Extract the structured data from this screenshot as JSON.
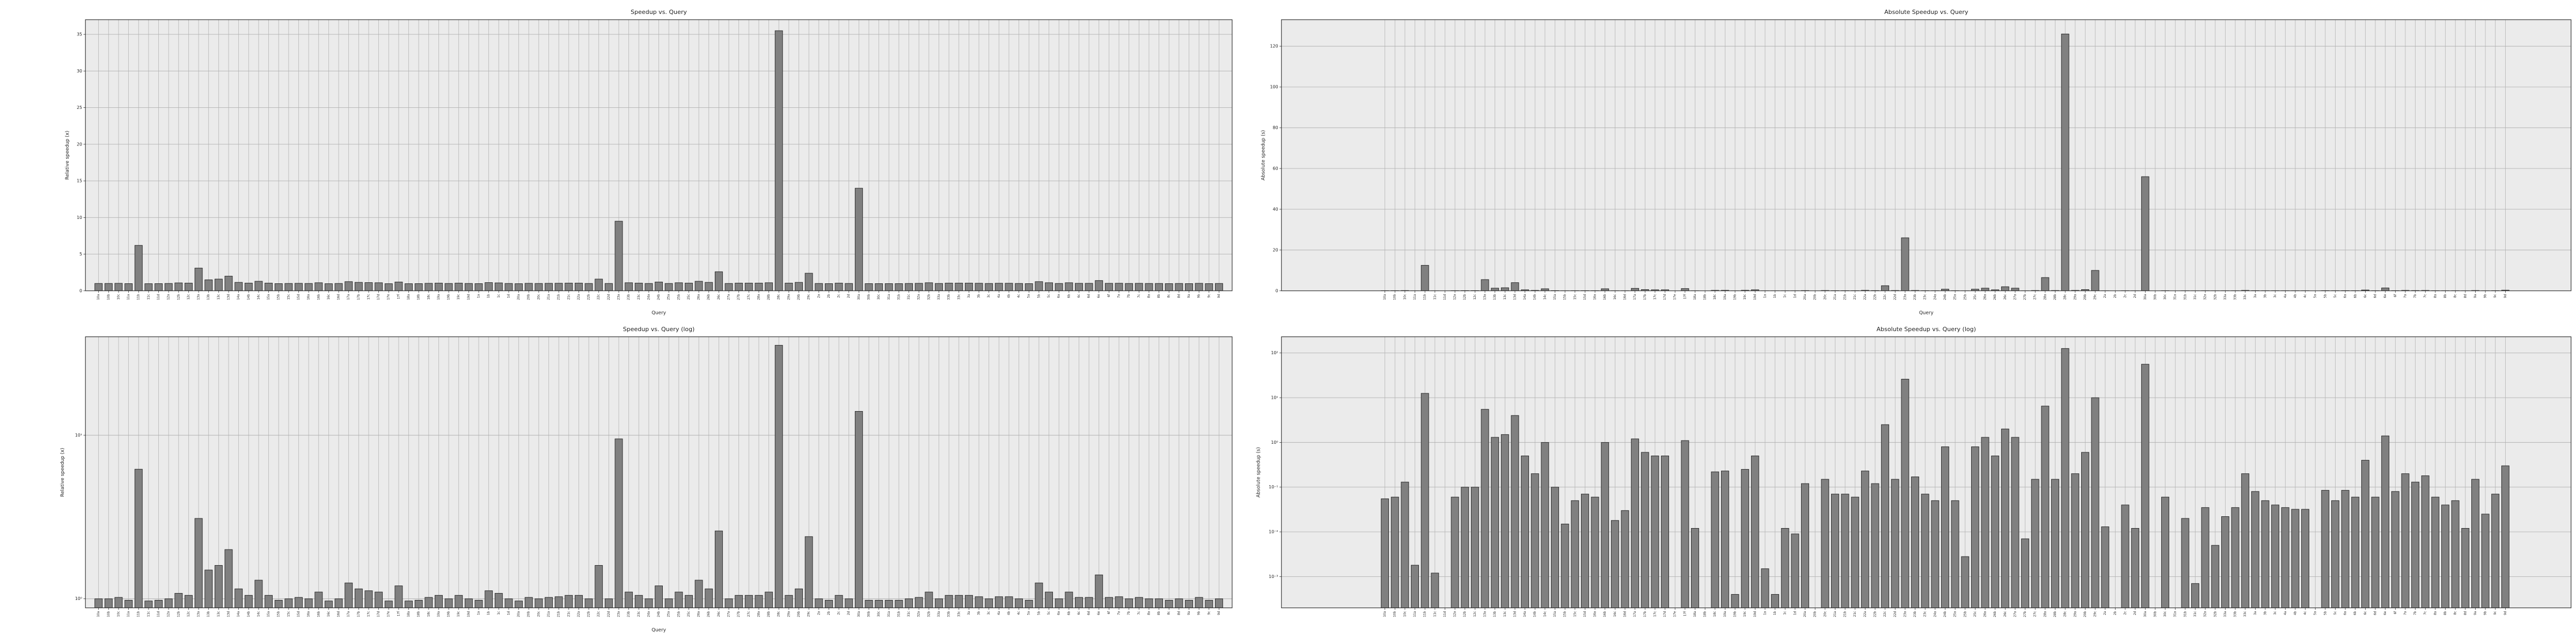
{
  "chart_data": [
    {
      "type": "bar",
      "title": "Speedup vs. Query",
      "xlabel": "Query",
      "ylabel": "Relative speedup (x)",
      "color": "#808080",
      "log": false,
      "grid": true,
      "categories": [
        "10a",
        "10b",
        "10c",
        "11a",
        "11b",
        "11c",
        "11d",
        "12a",
        "12b",
        "12c",
        "13a",
        "13b",
        "13c",
        "13d",
        "14a",
        "14b",
        "14c",
        "15a",
        "15b",
        "15c",
        "15d",
        "16a",
        "16b",
        "16c",
        "16d",
        "17a",
        "17b",
        "17c",
        "17d",
        "17e",
        "17f",
        "18a",
        "18b",
        "18c",
        "19a",
        "19b",
        "19c",
        "19d",
        "1a",
        "1b",
        "1c",
        "1d",
        "20a",
        "20b",
        "20c",
        "21a",
        "21b",
        "21c",
        "22a",
        "22b",
        "22c",
        "22d",
        "23a",
        "23b",
        "23c",
        "24a",
        "24b",
        "25a",
        "25b",
        "25c",
        "26a",
        "26b",
        "26c",
        "27a",
        "27b",
        "27c",
        "28a",
        "28b",
        "28c",
        "29a",
        "29b",
        "29c",
        "2a",
        "2b",
        "2c",
        "2d",
        "30a",
        "30b",
        "30c",
        "31a",
        "31b",
        "31c",
        "32a",
        "32b",
        "33a",
        "33b",
        "33c",
        "3a",
        "3b",
        "3c",
        "4a",
        "4b",
        "4c",
        "5a",
        "5b",
        "5c",
        "6a",
        "6b",
        "6c",
        "6d",
        "6e",
        "6f",
        "7a",
        "7b",
        "7c",
        "8a",
        "8b",
        "8c",
        "8d",
        "9a",
        "9b",
        "9c",
        "9d"
      ],
      "values": [
        1.0,
        1.0,
        1.02,
        0.98,
        6.2,
        0.97,
        0.98,
        1.0,
        1.08,
        1.05,
        3.1,
        1.5,
        1.6,
        2.0,
        1.15,
        1.05,
        1.3,
        1.05,
        0.98,
        1.0,
        1.02,
        1.0,
        1.1,
        0.97,
        1.0,
        1.25,
        1.15,
        1.12,
        1.1,
        0.97,
        1.2,
        0.97,
        0.98,
        1.02,
        1.05,
        1.0,
        1.05,
        1.0,
        0.98,
        1.12,
        1.08,
        1.0,
        0.97,
        1.02,
        1.0,
        1.02,
        1.03,
        1.05,
        1.05,
        1.0,
        1.6,
        1.0,
        9.5,
        1.1,
        1.05,
        1.0,
        1.2,
        1.0,
        1.1,
        1.05,
        1.3,
        1.15,
        2.6,
        1.0,
        1.05,
        1.05,
        1.05,
        1.1,
        35.5,
        1.05,
        1.15,
        2.4,
        1.0,
        0.98,
        1.05,
        1.0,
        14.0,
        0.98,
        0.98,
        0.98,
        0.98,
        1.0,
        1.02,
        1.1,
        1.0,
        1.05,
        1.05,
        1.05,
        1.03,
        1.0,
        1.03,
        1.03,
        1.0,
        0.98,
        1.25,
        1.1,
        1.0,
        1.1,
        1.02,
        1.02,
        1.4,
        1.02,
        1.03,
        1.0,
        1.02,
        1.0,
        1.0,
        0.98,
        1.0,
        0.98,
        1.02,
        0.98,
        1.0
      ],
      "ylim": [
        0,
        37
      ],
      "yticks": [
        0,
        5,
        10,
        15,
        20,
        25,
        30,
        35
      ]
    },
    {
      "type": "bar",
      "title": "Absolute Speedup vs. Query",
      "xlabel": "Query",
      "ylabel": "Absolute speedup (s)",
      "color": "#808080",
      "log": false,
      "grid": true,
      "categories": [
        "10a",
        "10b",
        "10c",
        "11a",
        "11b",
        "11c",
        "11d",
        "12a",
        "12b",
        "12c",
        "13a",
        "13b",
        "13c",
        "13d",
        "14a",
        "14b",
        "14c",
        "15a",
        "15b",
        "15c",
        "15d",
        "16a",
        "16b",
        "16c",
        "16d",
        "17a",
        "17b",
        "17c",
        "17d",
        "17e",
        "17f",
        "18a",
        "18b",
        "18c",
        "19a",
        "19b",
        "19c",
        "19d",
        "1a",
        "1b",
        "1c",
        "1d",
        "20a",
        "20b",
        "20c",
        "21a",
        "21b",
        "21c",
        "22a",
        "22b",
        "22c",
        "22d",
        "23a",
        "23b",
        "23c",
        "24a",
        "24b",
        "25a",
        "25b",
        "25c",
        "26a",
        "26b",
        "26c",
        "27a",
        "27b",
        "27c",
        "28a",
        "28b",
        "28c",
        "29a",
        "29b",
        "29c",
        "2a",
        "2b",
        "2c",
        "2d",
        "30a",
        "30b",
        "30c",
        "31a",
        "31b",
        "31c",
        "32a",
        "32b",
        "33a",
        "33b",
        "33c",
        "3a",
        "3b",
        "3c",
        "4a",
        "4b",
        "4c",
        "5a",
        "5b",
        "5c",
        "6a",
        "6b",
        "6c",
        "6d",
        "6e",
        "6f",
        "7a",
        "7b",
        "7c",
        "8a",
        "8b",
        "8c",
        "8d",
        "9a",
        "9b",
        "9c",
        "9d"
      ],
      "values": [
        0.055,
        0.06,
        0.13,
        0.0018,
        12.5,
        0.0012,
        null,
        0.06,
        0.1,
        0.1,
        5.5,
        1.3,
        1.5,
        4,
        0.5,
        0.2,
        1.0,
        0.1,
        0.015,
        0.05,
        0.07,
        0.06,
        1.0,
        0.018,
        0.03,
        1.2,
        0.6,
        0.5,
        0.5,
        null,
        1.1,
        0.012,
        null,
        0.22,
        0.23,
        0.0004,
        0.25,
        0.5,
        0.0015,
        0.0004,
        0.012,
        0.009,
        0.12,
        null,
        0.15,
        0.07,
        0.07,
        0.06,
        0.23,
        0.12,
        2.5,
        0.15,
        26,
        0.17,
        0.07,
        0.05,
        0.8,
        0.05,
        0.0028,
        0.8,
        1.3,
        0.5,
        2.0,
        1.3,
        0.007,
        0.15,
        6.5,
        0.15,
        126,
        0.2,
        0.6,
        10,
        0.013,
        null,
        0.04,
        0.012,
        56,
        null,
        0.06,
        null,
        0.02,
        0.0007,
        0.035,
        0.005,
        0.022,
        0.035,
        0.2,
        0.08,
        0.05,
        0.04,
        0.035,
        0.032,
        0.032,
        null,
        0.085,
        0.05,
        0.085,
        0.06,
        0.4,
        0.06,
        1.4,
        0.08,
        0.2,
        0.13,
        0.18,
        0.06,
        0.04,
        0.05,
        0.012,
        0.15,
        0.025,
        0.07,
        0.3
      ],
      "ylim": [
        0,
        133
      ],
      "yticks": [
        0,
        20,
        40,
        60,
        80,
        100,
        120
      ]
    },
    {
      "type": "bar",
      "title": "Speedup vs. Query (log)",
      "xlabel": "Query",
      "ylabel": "Relative speedup (x)",
      "color": "#808080",
      "log": true,
      "grid": true,
      "categories": [
        "10a",
        "10b",
        "10c",
        "11a",
        "11b",
        "11c",
        "11d",
        "12a",
        "12b",
        "12c",
        "13a",
        "13b",
        "13c",
        "13d",
        "14a",
        "14b",
        "14c",
        "15a",
        "15b",
        "15c",
        "15d",
        "16a",
        "16b",
        "16c",
        "16d",
        "17a",
        "17b",
        "17c",
        "17d",
        "17e",
        "17f",
        "18a",
        "18b",
        "18c",
        "19a",
        "19b",
        "19c",
        "19d",
        "1a",
        "1b",
        "1c",
        "1d",
        "20a",
        "20b",
        "20c",
        "21a",
        "21b",
        "21c",
        "22a",
        "22b",
        "22c",
        "22d",
        "23a",
        "23b",
        "23c",
        "24a",
        "24b",
        "25a",
        "25b",
        "25c",
        "26a",
        "26b",
        "26c",
        "27a",
        "27b",
        "27c",
        "28a",
        "28b",
        "28c",
        "29a",
        "29b",
        "29c",
        "2a",
        "2b",
        "2c",
        "2d",
        "30a",
        "30b",
        "30c",
        "31a",
        "31b",
        "31c",
        "32a",
        "32b",
        "33a",
        "33b",
        "33c",
        "3a",
        "3b",
        "3c",
        "4a",
        "4b",
        "4c",
        "5a",
        "5b",
        "5c",
        "6a",
        "6b",
        "6c",
        "6d",
        "6e",
        "6f",
        "7a",
        "7b",
        "7c",
        "8a",
        "8b",
        "8c",
        "8d",
        "9a",
        "9b",
        "9c",
        "9d"
      ],
      "values": [
        1.0,
        1.0,
        1.02,
        0.98,
        6.2,
        0.97,
        0.98,
        1.0,
        1.08,
        1.05,
        3.1,
        1.5,
        1.6,
        2.0,
        1.15,
        1.05,
        1.3,
        1.05,
        0.98,
        1.0,
        1.02,
        1.0,
        1.1,
        0.97,
        1.0,
        1.25,
        1.15,
        1.12,
        1.1,
        0.97,
        1.2,
        0.97,
        0.98,
        1.02,
        1.05,
        1.0,
        1.05,
        1.0,
        0.98,
        1.12,
        1.08,
        1.0,
        0.97,
        1.02,
        1.0,
        1.02,
        1.03,
        1.05,
        1.05,
        1.0,
        1.6,
        1.0,
        9.5,
        1.1,
        1.05,
        1.0,
        1.2,
        1.0,
        1.1,
        1.05,
        1.3,
        1.15,
        2.6,
        1.0,
        1.05,
        1.05,
        1.05,
        1.1,
        35.5,
        1.05,
        1.15,
        2.4,
        1.0,
        0.98,
        1.05,
        1.0,
        14.0,
        0.98,
        0.98,
        0.98,
        0.98,
        1.0,
        1.02,
        1.1,
        1.0,
        1.05,
        1.05,
        1.05,
        1.03,
        1.0,
        1.03,
        1.03,
        1.0,
        0.98,
        1.25,
        1.1,
        1.0,
        1.1,
        1.02,
        1.02,
        1.4,
        1.02,
        1.03,
        1.0,
        1.02,
        1.0,
        1.0,
        0.98,
        1.0,
        0.98,
        1.02,
        0.98,
        1.0
      ],
      "ylim": [
        0.88,
        40
      ],
      "yticks": [
        {
          "value": 1,
          "label": "10⁰"
        },
        {
          "value": 10,
          "label": "10¹"
        }
      ]
    },
    {
      "type": "bar",
      "title": "Absolute Speedup vs. Query (log)",
      "ylabel": "Absolute speedup (s)",
      "color": "#808080",
      "log": true,
      "grid": true,
      "categories": [
        "10a",
        "10b",
        "10c",
        "11a",
        "11b",
        "11c",
        "11d",
        "12a",
        "12b",
        "12c",
        "13a",
        "13b",
        "13c",
        "13d",
        "14a",
        "14b",
        "14c",
        "15a",
        "15b",
        "15c",
        "15d",
        "16a",
        "16b",
        "16c",
        "16d",
        "17a",
        "17b",
        "17c",
        "17d",
        "17e",
        "17f",
        "18a",
        "18b",
        "18c",
        "19a",
        "19b",
        "19c",
        "19d",
        "1a",
        "1b",
        "1c",
        "1d",
        "20a",
        "20b",
        "20c",
        "21a",
        "21b",
        "21c",
        "22a",
        "22b",
        "22c",
        "22d",
        "23a",
        "23b",
        "23c",
        "24a",
        "24b",
        "25a",
        "25b",
        "25c",
        "26a",
        "26b",
        "26c",
        "27a",
        "27b",
        "27c",
        "28a",
        "28b",
        "28c",
        "29a",
        "29b",
        "29c",
        "2a",
        "2b",
        "2c",
        "2d",
        "30a",
        "30b",
        "30c",
        "31a",
        "31b",
        "31c",
        "32a",
        "32b",
        "33a",
        "33b",
        "33c",
        "3a",
        "3b",
        "3c",
        "4a",
        "4b",
        "4c",
        "5a",
        "5b",
        "5c",
        "6a",
        "6b",
        "6c",
        "6d",
        "6e",
        "6f",
        "7a",
        "7b",
        "7c",
        "8a",
        "8b",
        "8c",
        "8d",
        "9a",
        "9b",
        "9c",
        "9d"
      ],
      "values": [
        0.055,
        0.06,
        0.13,
        0.0018,
        12.5,
        0.0012,
        null,
        0.06,
        0.1,
        0.1,
        5.5,
        1.3,
        1.5,
        4,
        0.5,
        0.2,
        1.0,
        0.1,
        0.015,
        0.05,
        0.07,
        0.06,
        1.0,
        0.018,
        0.03,
        1.2,
        0.6,
        0.5,
        0.5,
        null,
        1.1,
        0.012,
        null,
        0.22,
        0.23,
        0.0004,
        0.25,
        0.5,
        0.0015,
        0.0004,
        0.012,
        0.009,
        0.12,
        null,
        0.15,
        0.07,
        0.07,
        0.06,
        0.23,
        0.12,
        2.5,
        0.15,
        26,
        0.17,
        0.07,
        0.05,
        0.8,
        0.05,
        0.0028,
        0.8,
        1.3,
        0.5,
        2.0,
        1.3,
        0.007,
        0.15,
        6.5,
        0.15,
        126,
        0.2,
        0.6,
        10,
        0.013,
        null,
        0.04,
        0.012,
        56,
        null,
        0.06,
        null,
        0.02,
        0.0007,
        0.035,
        0.005,
        0.022,
        0.035,
        0.2,
        0.08,
        0.05,
        0.04,
        0.035,
        0.032,
        0.032,
        null,
        0.085,
        0.05,
        0.085,
        0.06,
        0.4,
        0.06,
        1.4,
        0.08,
        0.2,
        0.13,
        0.18,
        0.06,
        0.04,
        0.05,
        0.012,
        0.15,
        0.025,
        0.07,
        0.3
      ],
      "ylim": [
        0.0002,
        230
      ],
      "yticks": [
        {
          "value": 0.001,
          "label": "10⁻³"
        },
        {
          "value": 0.01,
          "label": "10⁻²"
        },
        {
          "value": 0.1,
          "label": "10⁻¹"
        },
        {
          "value": 1,
          "label": "10⁰"
        },
        {
          "value": 10,
          "label": "10¹"
        },
        {
          "value": 100,
          "label": "10²"
        }
      ]
    }
  ]
}
